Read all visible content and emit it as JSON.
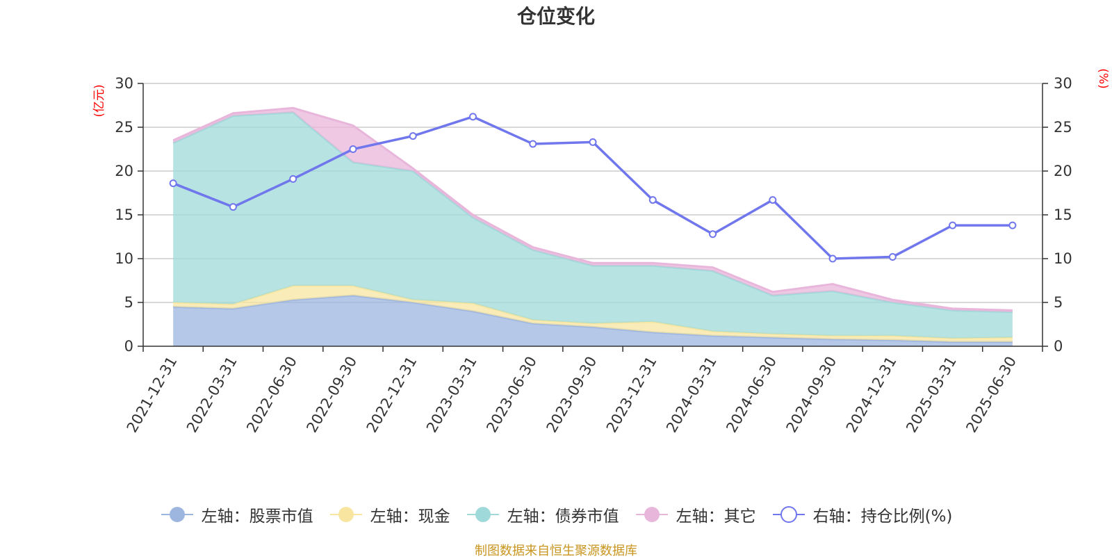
{
  "chart_data": {
    "type": "area",
    "title": "仓位变化",
    "y_left_unit": "(亿元)",
    "y_right_unit": "(%)",
    "ylim_left": [
      0,
      30
    ],
    "ylim_right": [
      0,
      30
    ],
    "yticks": [
      0,
      5,
      10,
      15,
      20,
      25,
      30
    ],
    "grid": true,
    "legend_position": "bottom",
    "stacked": true,
    "categories": [
      "2021-12-31",
      "2022-03-31",
      "2022-06-30",
      "2022-09-30",
      "2022-12-31",
      "2023-03-31",
      "2023-06-30",
      "2023-09-30",
      "2023-12-31",
      "2024-03-31",
      "2024-06-30",
      "2024-09-30",
      "2024-12-31",
      "2025-03-31",
      "2025-06-30"
    ],
    "series": [
      {
        "name": "左轴：股票市值",
        "axis": "left",
        "kind": "area",
        "color": "#9db6e0",
        "values": [
          4.5,
          4.3,
          5.3,
          5.8,
          5.0,
          4.0,
          2.6,
          2.2,
          1.6,
          1.2,
          1.0,
          0.8,
          0.7,
          0.5,
          0.5
        ]
      },
      {
        "name": "左轴：现金",
        "axis": "left",
        "kind": "area",
        "color": "#f8e6a0",
        "values": [
          0.5,
          0.5,
          1.6,
          1.1,
          0.3,
          0.9,
          0.4,
          0.4,
          1.2,
          0.5,
          0.4,
          0.4,
          0.5,
          0.4,
          0.5
        ]
      },
      {
        "name": "左轴：债券市值",
        "axis": "left",
        "kind": "area",
        "color": "#9fd9d9",
        "values": [
          18.2,
          21.5,
          19.8,
          14.1,
          14.7,
          9.8,
          8.0,
          6.6,
          6.4,
          6.9,
          4.4,
          5.1,
          3.8,
          3.2,
          2.9
        ]
      },
      {
        "name": "左轴：其它",
        "axis": "left",
        "kind": "area",
        "color": "#e9b6db",
        "values": [
          0.3,
          0.3,
          0.5,
          4.2,
          0.3,
          0.3,
          0.3,
          0.3,
          0.3,
          0.4,
          0.4,
          0.8,
          0.3,
          0.2,
          0.2
        ]
      },
      {
        "name": "右轴：持仓比例(%)",
        "axis": "right",
        "kind": "line",
        "color": "#7076ec",
        "values": [
          18.6,
          15.9,
          19.1,
          22.5,
          24.0,
          26.2,
          23.1,
          23.3,
          16.7,
          12.8,
          16.7,
          10.0,
          10.2,
          13.8,
          13.8
        ]
      }
    ]
  },
  "source_note": "制图数据来自恒生聚源数据库"
}
